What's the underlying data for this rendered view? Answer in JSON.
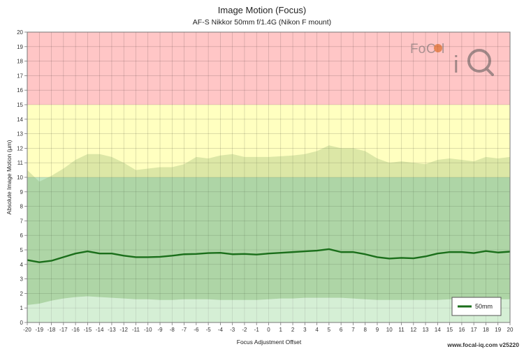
{
  "chart_data": {
    "type": "line",
    "title": "Image Motion (Focus)",
    "subtitle": "AF-S Nikkor 50mm f/1.4G (Nikon F mount)",
    "xlabel": "Focus Adjustment Offset",
    "ylabel": "Absolute Image Motion (µm)",
    "xlim": [
      -20,
      20
    ],
    "ylim": [
      0,
      20
    ],
    "x_ticks": [
      -20,
      -19,
      -18,
      -17,
      -16,
      -15,
      -14,
      -13,
      -12,
      -11,
      -10,
      -9,
      -8,
      -7,
      -6,
      -5,
      -4,
      -3,
      -2,
      -1,
      0,
      1,
      2,
      3,
      4,
      5,
      6,
      7,
      8,
      9,
      10,
      11,
      12,
      13,
      14,
      15,
      16,
      17,
      18,
      19,
      20
    ],
    "y_ticks": [
      0,
      1,
      2,
      3,
      4,
      5,
      6,
      7,
      8,
      9,
      10,
      11,
      12,
      13,
      14,
      15,
      16,
      17,
      18,
      19,
      20
    ],
    "grid": true,
    "zones": [
      {
        "from": 0,
        "to": 10,
        "color": "#bfe6bf"
      },
      {
        "from": 10,
        "to": 15,
        "color": "#ffffc0"
      },
      {
        "from": 15,
        "to": 20,
        "color": "#ffc6c6"
      }
    ],
    "x": [
      -20,
      -19,
      -18,
      -17,
      -16,
      -15,
      -14,
      -13,
      -12,
      -11,
      -10,
      -9,
      -8,
      -7,
      -6,
      -5,
      -4,
      -3,
      -2,
      -1,
      0,
      1,
      2,
      3,
      4,
      5,
      6,
      7,
      8,
      9,
      10,
      11,
      12,
      13,
      14,
      15,
      16,
      17,
      18,
      19,
      20
    ],
    "series": [
      {
        "name": "50mm",
        "color": "#1a6e1a",
        "values": [
          4.3,
          4.15,
          4.25,
          4.5,
          4.75,
          4.9,
          4.75,
          4.75,
          4.6,
          4.5,
          4.5,
          4.52,
          4.6,
          4.7,
          4.72,
          4.78,
          4.8,
          4.7,
          4.72,
          4.68,
          4.75,
          4.8,
          4.85,
          4.9,
          4.95,
          5.05,
          4.85,
          4.85,
          4.7,
          4.5,
          4.4,
          4.45,
          4.42,
          4.55,
          4.75,
          4.85,
          4.85,
          4.78,
          4.92,
          4.82,
          4.88
        ]
      }
    ],
    "band_upper": [
      10.5,
      9.7,
      10.1,
      10.6,
      11.2,
      11.6,
      11.6,
      11.4,
      11.0,
      10.5,
      10.6,
      10.7,
      10.7,
      10.9,
      11.4,
      11.3,
      11.5,
      11.6,
      11.4,
      11.4,
      11.4,
      11.45,
      11.5,
      11.6,
      11.8,
      12.2,
      12.0,
      12.0,
      11.8,
      11.3,
      11.0,
      11.1,
      11.0,
      10.9,
      11.2,
      11.3,
      11.2,
      11.1,
      11.4,
      11.3,
      11.4
    ],
    "band_lower": [
      1.2,
      1.3,
      1.5,
      1.65,
      1.75,
      1.8,
      1.75,
      1.7,
      1.65,
      1.6,
      1.6,
      1.55,
      1.55,
      1.6,
      1.6,
      1.6,
      1.55,
      1.55,
      1.55,
      1.55,
      1.6,
      1.65,
      1.65,
      1.7,
      1.7,
      1.7,
      1.7,
      1.65,
      1.6,
      1.55,
      1.55,
      1.55,
      1.55,
      1.55,
      1.55,
      1.6,
      1.6,
      1.6,
      1.6,
      1.6,
      1.6
    ],
    "legend": {
      "position": "bottom-right",
      "entries": [
        "50mm"
      ]
    }
  },
  "logo": {
    "name": "focal-iq-logo",
    "text": "FoCal iQ"
  },
  "footer": {
    "text": "www.focal-iq.com  v25220"
  }
}
